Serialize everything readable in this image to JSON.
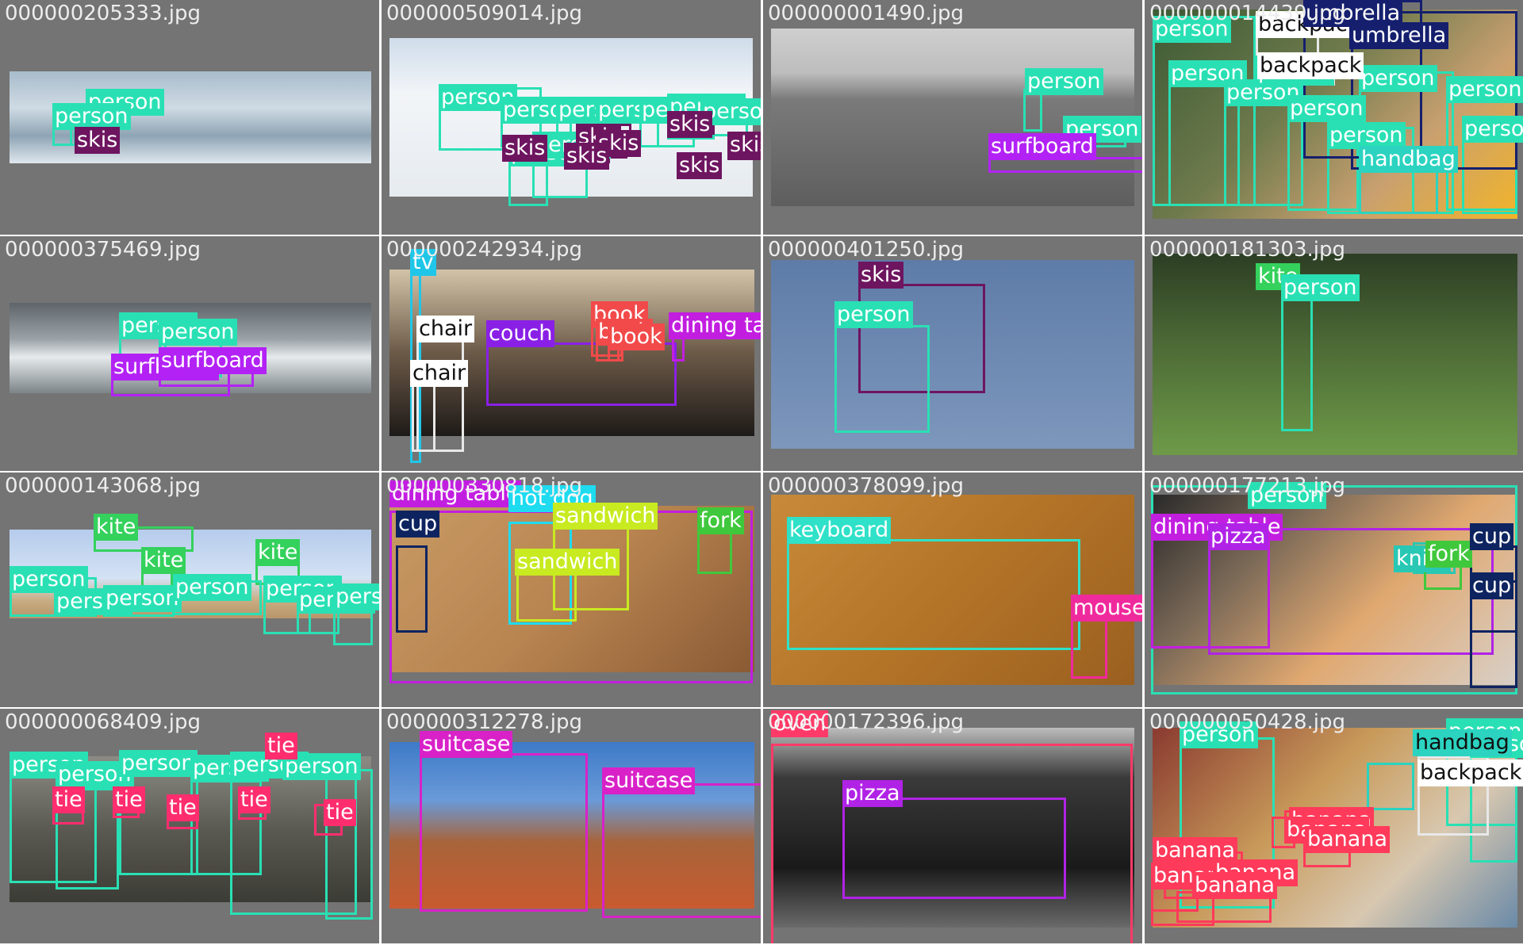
{
  "colors": {
    "background": "#747474",
    "person": "#29e0b4",
    "skis": "#6e1560",
    "surfboard": "#b322f5",
    "backpack": "#ffffff",
    "umbrella": "#151f6e",
    "handbag": "#2bd3c0",
    "tv": "#20c6e8",
    "chair": "#ffffff",
    "couch": "#8a20e6",
    "book": "#f24a4a",
    "dining table": "#c21ee0",
    "kite": "#34d15c",
    "hot dog": "#1edbf0",
    "sandwich": "#c8ea20",
    "fork": "#40c83c",
    "keyboard": "#2ee1c8",
    "mouse": "#ef2a9c",
    "pizza": "#b023e6",
    "knife": "#28c8b4",
    "cup": "#0e2460",
    "tie": "#ff2d6e",
    "suitcase": "#d822c8",
    "oven": "#ff3a68",
    "banana": "#ff3a5a"
  },
  "tiles": [
    {
      "filename": "000000205333.jpg",
      "photo_tone": "linear-gradient(180deg,#a8bccc 0%,#cfdbe4 40%,#8ea4b4 70%,#dfe7ee 100%)",
      "detections": [
        {
          "label": "person",
          "text_color": "#ffffff"
        },
        {
          "label": "person",
          "text_color": "#ffffff"
        },
        {
          "label": "skis",
          "text_color": "#ffffff"
        }
      ]
    },
    {
      "filename": "000000509014.jpg",
      "photo_tone": "linear-gradient(180deg,#cfdcea 0%,#f2f5f8 35%,#e6ebf0 100%)",
      "detections": [
        {
          "label": "person",
          "text_color": "#ffffff"
        },
        {
          "label": "person",
          "text_color": "#ffffff"
        },
        {
          "label": "person",
          "text_color": "#ffffff"
        },
        {
          "label": "person",
          "text_color": "#ffffff"
        },
        {
          "label": "person",
          "text_color": "#ffffff"
        },
        {
          "label": "person",
          "text_color": "#ffffff"
        },
        {
          "label": "person",
          "text_color": "#ffffff"
        },
        {
          "label": "person",
          "text_color": "#ffffff"
        },
        {
          "label": "person",
          "text_color": "#ffffff"
        },
        {
          "label": "skis",
          "text_color": "#ffffff"
        },
        {
          "label": "skis",
          "text_color": "#ffffff"
        },
        {
          "label": "skis",
          "text_color": "#ffffff"
        },
        {
          "label": "skis",
          "text_color": "#ffffff"
        },
        {
          "label": "skis",
          "text_color": "#ffffff"
        },
        {
          "label": "skis",
          "text_color": "#ffffff"
        },
        {
          "label": "skis",
          "text_color": "#ffffff"
        }
      ]
    },
    {
      "filename": "000000001490.jpg",
      "photo_tone": "linear-gradient(180deg,#cfcfcf 0%,#bdbdbd 25%,#7a7a7a 40%,#5e5e5e 100%)",
      "detections": [
        {
          "label": "person",
          "text_color": "#ffffff"
        },
        {
          "label": "person",
          "text_color": "#ffffff"
        },
        {
          "label": "surfboard",
          "text_color": "#ffffff"
        }
      ]
    },
    {
      "filename": "000000014439.jpg",
      "photo_tone": "linear-gradient(135deg,#3c5a34 0%,#6e7a4c 40%,#c8a070 70%,#f2b42a 100%)",
      "detections": [
        {
          "label": "person",
          "text_color": "#ffffff"
        },
        {
          "label": "person",
          "text_color": "#ffffff"
        },
        {
          "label": "person",
          "text_color": "#ffffff"
        },
        {
          "label": "person",
          "text_color": "#ffffff"
        },
        {
          "label": "person",
          "text_color": "#ffffff"
        },
        {
          "label": "person",
          "text_color": "#ffffff"
        },
        {
          "label": "person",
          "text_color": "#ffffff"
        },
        {
          "label": "person",
          "text_color": "#ffffff"
        },
        {
          "label": "person",
          "text_color": "#ffffff"
        },
        {
          "label": "backpack",
          "text_color": "#111111"
        },
        {
          "label": "backpack",
          "text_color": "#111111"
        },
        {
          "label": "umbrella",
          "text_color": "#ffffff"
        },
        {
          "label": "umbrella",
          "text_color": "#ffffff"
        },
        {
          "label": "handbag",
          "text_color": "#ffffff"
        }
      ]
    },
    {
      "filename": "000000375469.jpg",
      "photo_tone": "linear-gradient(180deg,#5e646a 0%,#9aa2a8 40%,#e6eaec 60%,#7c8488 100%)",
      "detections": [
        {
          "label": "person",
          "text_color": "#ffffff"
        },
        {
          "label": "person",
          "text_color": "#ffffff"
        },
        {
          "label": "surfboard",
          "text_color": "#ffffff"
        },
        {
          "label": "surfboard",
          "text_color": "#ffffff"
        }
      ]
    },
    {
      "filename": "000000242934.jpg",
      "photo_tone": "linear-gradient(180deg,#d2c4a8 0%,#6c5a48 50%,#1e1a18 100%)",
      "detections": [
        {
          "label": "tv",
          "text_color": "#ffffff"
        },
        {
          "label": "chair",
          "text_color": "#111111"
        },
        {
          "label": "chair",
          "text_color": "#111111"
        },
        {
          "label": "couch",
          "text_color": "#ffffff"
        },
        {
          "label": "book",
          "text_color": "#ffffff"
        },
        {
          "label": "book",
          "text_color": "#ffffff"
        },
        {
          "label": "book",
          "text_color": "#ffffff"
        },
        {
          "label": "dining table",
          "text_color": "#ffffff"
        }
      ]
    },
    {
      "filename": "000000401250.jpg",
      "photo_tone": "linear-gradient(180deg,#5e7ca8 0%,#7d97bc 100%)",
      "detections": [
        {
          "label": "skis",
          "text_color": "#ffffff"
        },
        {
          "label": "person",
          "text_color": "#ffffff"
        }
      ]
    },
    {
      "filename": "000000181303.jpg",
      "photo_tone": "linear-gradient(180deg,#2c3e24 0%,#4c6a36 45%,#6e9a48 100%)",
      "detections": [
        {
          "label": "kite",
          "text_color": "#ffffff"
        },
        {
          "label": "person",
          "text_color": "#ffffff"
        }
      ]
    },
    {
      "filename": "000000143068.jpg",
      "photo_tone": "linear-gradient(180deg,#b6ccec 0%,#d4e2f4 55%,#c8ac82 80%,#b8966a 100%)",
      "detections": [
        {
          "label": "kite",
          "text_color": "#ffffff"
        },
        {
          "label": "kite",
          "text_color": "#ffffff"
        },
        {
          "label": "kite",
          "text_color": "#ffffff"
        },
        {
          "label": "person",
          "text_color": "#ffffff"
        },
        {
          "label": "person",
          "text_color": "#ffffff"
        },
        {
          "label": "person",
          "text_color": "#ffffff"
        },
        {
          "label": "person",
          "text_color": "#ffffff"
        },
        {
          "label": "person",
          "text_color": "#ffffff"
        },
        {
          "label": "person",
          "text_color": "#ffffff"
        },
        {
          "label": "person",
          "text_color": "#ffffff"
        }
      ]
    },
    {
      "filename": "000000330818.jpg",
      "photo_tone": "linear-gradient(135deg,#c89a64 0%,#b88450 50%,#8a5a34 100%)",
      "detections": [
        {
          "label": "dining table",
          "text_color": "#ffffff"
        },
        {
          "label": "hot dog",
          "text_color": "#ffffff"
        },
        {
          "label": "sandwich",
          "text_color": "#ffffff"
        },
        {
          "label": "sandwich",
          "text_color": "#ffffff"
        },
        {
          "label": "fork",
          "text_color": "#ffffff"
        },
        {
          "label": "cup",
          "text_color": "#ffffff"
        }
      ]
    },
    {
      "filename": "000000378099.jpg",
      "photo_tone": "linear-gradient(135deg,#c88a3a 0%,#b47428 50%,#9a6020 100%)",
      "detections": [
        {
          "label": "keyboard",
          "text_color": "#ffffff"
        },
        {
          "label": "mouse",
          "text_color": "#ffffff"
        }
      ]
    },
    {
      "filename": "000000177213.jpg",
      "photo_tone": "linear-gradient(135deg,#2a2a2a 0%,#7c6a58 30%,#e0a870 60%,#d8d0c8 100%)",
      "detections": [
        {
          "label": "person",
          "text_color": "#ffffff"
        },
        {
          "label": "dining table",
          "text_color": "#ffffff"
        },
        {
          "label": "pizza",
          "text_color": "#ffffff"
        },
        {
          "label": "knife",
          "text_color": "#ffffff"
        },
        {
          "label": "fork",
          "text_color": "#ffffff"
        },
        {
          "label": "cup",
          "text_color": "#ffffff"
        },
        {
          "label": "cup",
          "text_color": "#ffffff"
        }
      ]
    },
    {
      "filename": "000000068409.jpg",
      "photo_tone": "linear-gradient(180deg,#8c8c84 0%,#5a5a52 50%,#3c3c36 100%)",
      "detections": [
        {
          "label": "person",
          "text_color": "#ffffff"
        },
        {
          "label": "person",
          "text_color": "#ffffff"
        },
        {
          "label": "person",
          "text_color": "#ffffff"
        },
        {
          "label": "person",
          "text_color": "#ffffff"
        },
        {
          "label": "person",
          "text_color": "#ffffff"
        },
        {
          "label": "person",
          "text_color": "#ffffff"
        },
        {
          "label": "tie",
          "text_color": "#ffffff"
        },
        {
          "label": "tie",
          "text_color": "#ffffff"
        },
        {
          "label": "tie",
          "text_color": "#ffffff"
        },
        {
          "label": "tie",
          "text_color": "#ffffff"
        },
        {
          "label": "tie",
          "text_color": "#ffffff"
        },
        {
          "label": "tie",
          "text_color": "#ffffff"
        }
      ]
    },
    {
      "filename": "000000312278.jpg",
      "photo_tone": "linear-gradient(180deg,#3e7ac8 0%,#6a9ad8 35%,#a8643a 60%,#c85a30 100%)",
      "detections": [
        {
          "label": "suitcase",
          "text_color": "#ffffff"
        },
        {
          "label": "suitcase",
          "text_color": "#ffffff"
        }
      ]
    },
    {
      "filename": "000000172396.jpg",
      "photo_tone": "linear-gradient(180deg,#bcbcbc 0%,#3a3a3a 25%,#1a1a1a 70%,#6a6a6a 100%)",
      "detections": [
        {
          "label": "oven",
          "text_color": "#ffffff"
        },
        {
          "label": "pizza",
          "text_color": "#ffffff"
        }
      ]
    },
    {
      "filename": "000000050428.jpg",
      "photo_tone": "linear-gradient(135deg,#8a3a30 0%,#c89a5a 40%,#d8c8b0 70%,#6a8aa8 100%)",
      "detections": [
        {
          "label": "person",
          "text_color": "#ffffff"
        },
        {
          "label": "person",
          "text_color": "#ffffff"
        },
        {
          "label": "person",
          "text_color": "#ffffff"
        },
        {
          "label": "handbag",
          "text_color": "#111111"
        },
        {
          "label": "backpack",
          "text_color": "#111111"
        },
        {
          "label": "banana",
          "text_color": "#ffffff"
        },
        {
          "label": "banana",
          "text_color": "#ffffff"
        },
        {
          "label": "banana",
          "text_color": "#ffffff"
        },
        {
          "label": "banana",
          "text_color": "#ffffff"
        },
        {
          "label": "banana",
          "text_color": "#ffffff"
        },
        {
          "label": "banana",
          "text_color": "#ffffff"
        },
        {
          "label": "banana",
          "text_color": "#ffffff"
        }
      ]
    }
  ]
}
